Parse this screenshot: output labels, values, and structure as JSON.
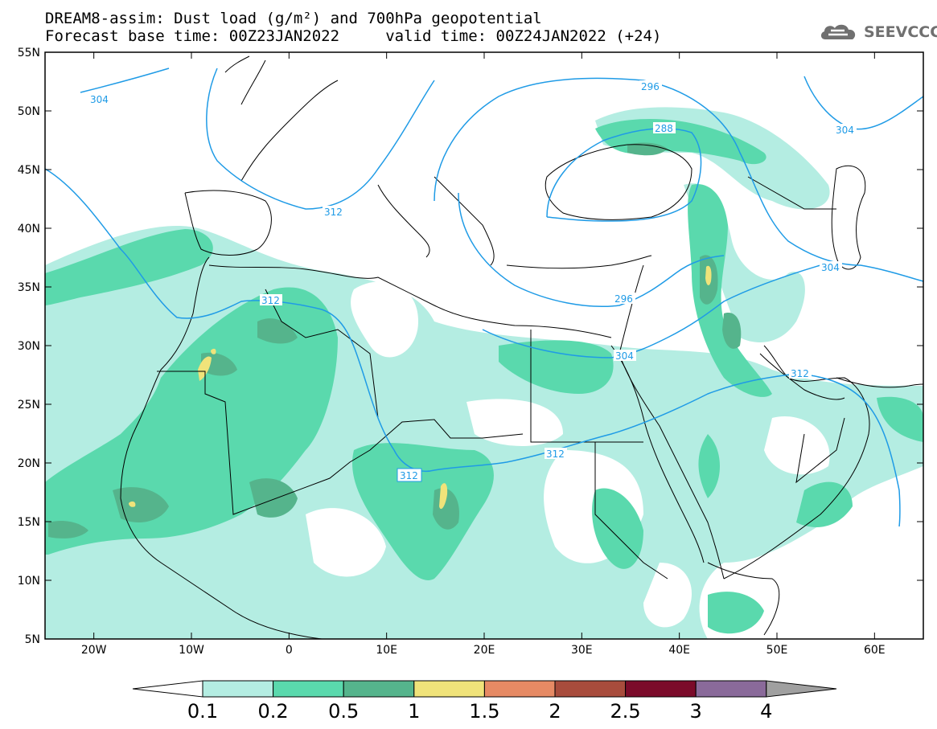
{
  "header": {
    "title_line1": "DREAM8-assim: Dust load (g/m²) and 700hPa geopotential",
    "title_line2": "Forecast base time: 00Z23JAN2022     valid time: 00Z24JAN2022 (+24)",
    "logo_text": "SEEVCCC"
  },
  "map": {
    "lon_range": [
      -25,
      65
    ],
    "lat_range": [
      5,
      55
    ],
    "lat_ticks": [
      "55N",
      "50N",
      "45N",
      "40N",
      "35N",
      "30N",
      "25N",
      "20N",
      "15N",
      "10N",
      "5N"
    ],
    "lon_ticks": [
      "20W",
      "10W",
      "0",
      "10E",
      "20E",
      "30E",
      "40E",
      "50E",
      "60E"
    ],
    "contour_color": "#1f9be6",
    "contour_labels": [
      "304",
      "296",
      "288",
      "304",
      "312",
      "304",
      "312",
      "296",
      "304",
      "312",
      "312",
      "312"
    ]
  },
  "colorbar": {
    "levels": [
      "0.1",
      "0.2",
      "0.5",
      "1",
      "1.5",
      "2",
      "2.5",
      "3",
      "4"
    ],
    "colors": [
      "#ffffff",
      "#b4ede2",
      "#5ad9ad",
      "#55b48c",
      "#f0e37a",
      "#e68a64",
      "#a84c3c",
      "#7b0b2a",
      "#8a6a9a",
      "#a0a0a0"
    ]
  }
}
